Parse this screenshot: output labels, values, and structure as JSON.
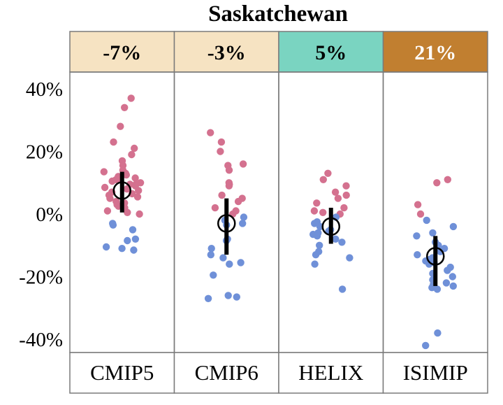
{
  "chart_data": {
    "type": "scatter",
    "title": "Saskatchewan",
    "xlabel": "",
    "ylabel": "",
    "ylim": [
      -45,
      45
    ],
    "yticks": [
      40,
      20,
      0,
      -20,
      -40
    ],
    "ytick_labels": [
      "40%",
      "20%",
      "0%",
      "-20%",
      "-40%"
    ],
    "grid": false,
    "legend": "none",
    "colors": {
      "positive_point": "#d4718f",
      "negative_point": "#6f90d8",
      "summary": "#000000",
      "frame": "#7a7a7a"
    },
    "panels": [
      {
        "name": "CMIP5",
        "header": "-7%",
        "header_color": "#f6e3c2",
        "mean": 7.5,
        "range": [
          0.5,
          13.5
        ],
        "values": [
          37,
          34,
          28,
          23,
          21,
          19,
          17,
          15.5,
          14,
          13.5,
          13,
          12.5,
          12,
          11.5,
          11,
          11,
          10.5,
          10,
          9.5,
          9.5,
          9,
          8.5,
          8,
          7.5,
          7,
          6.5,
          6,
          5.5,
          5,
          4,
          3.5,
          3,
          2.5,
          2,
          1,
          0.5,
          0,
          -3,
          -3.5,
          -5,
          -8,
          -8.5,
          -10.5,
          -11,
          -11.5
        ]
      },
      {
        "name": "CMIP6",
        "header": "-3%",
        "header_color": "#f6e3c2",
        "mean": -3,
        "range": [
          -13,
          5
        ],
        "values": [
          26,
          23,
          20,
          16,
          15.5,
          14,
          10,
          9.5,
          9,
          6,
          5,
          4,
          2,
          1,
          0,
          -1,
          -2,
          -3,
          -3.5,
          -8,
          -8.5,
          -11,
          -13,
          -14,
          -15.5,
          -16,
          -19.5,
          -26,
          -26.5,
          -27
        ]
      },
      {
        "name": "HELIX",
        "header": "5%",
        "header_color": "#7ad4c1",
        "mean": -4,
        "range": [
          -9.5,
          2
        ],
        "values": [
          13,
          11,
          9,
          7,
          6,
          5,
          3.5,
          2,
          1,
          0.5,
          0,
          -1,
          -2.5,
          -3,
          -4,
          -5,
          -5.5,
          -6,
          -6.5,
          -7,
          -8,
          -9,
          -10,
          -12,
          -13,
          -14,
          -16,
          -24
        ]
      },
      {
        "name": "ISIMIP",
        "header": "21%",
        "header_color": "#c17f30",
        "mean": -13.5,
        "range": [
          -23,
          -7
        ],
        "values": [
          11,
          10,
          3,
          0,
          -2,
          -4,
          -6,
          -7,
          -9,
          -10,
          -11,
          -12,
          -13,
          -14,
          -14.5,
          -15,
          -15.5,
          -16,
          -17,
          -18,
          -19,
          -20,
          -21,
          -22,
          -22.5,
          -23,
          -23.5,
          -24,
          -38,
          -42
        ]
      }
    ]
  }
}
